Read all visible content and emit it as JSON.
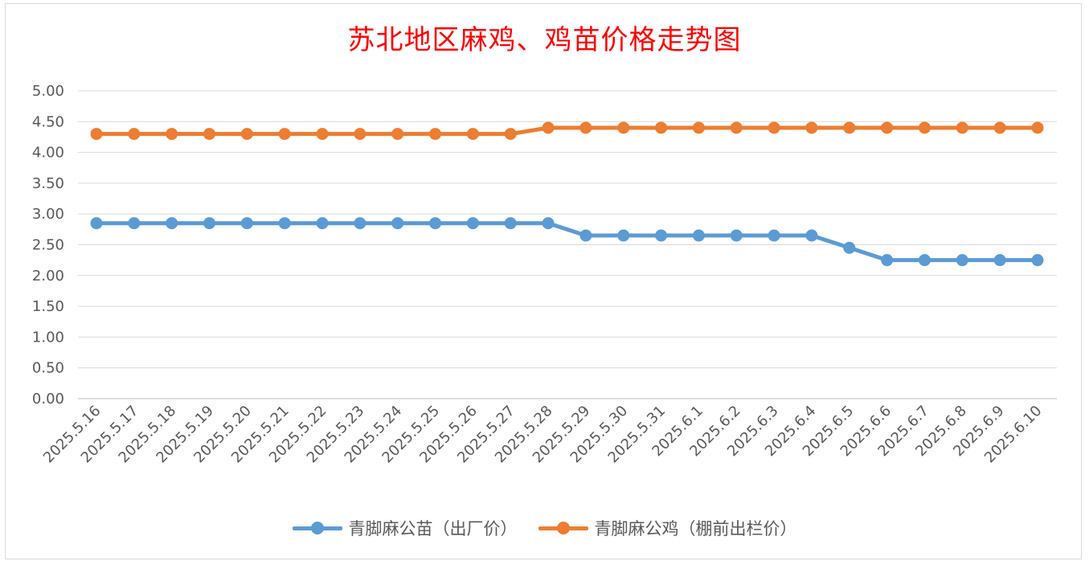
{
  "chart_data": {
    "type": "line",
    "title": "苏北地区麻鸡、鸡苗价格走势图",
    "xlabel": "",
    "ylabel": "",
    "ylim": [
      0,
      5
    ],
    "yticks": [
      "0.00",
      "0.50",
      "1.00",
      "1.50",
      "2.00",
      "2.50",
      "3.00",
      "3.50",
      "4.00",
      "4.50",
      "5.00"
    ],
    "grid": true,
    "legend_position": "bottom",
    "categories": [
      "2025.5.16",
      "2025.5.17",
      "2025.5.18",
      "2025.5.19",
      "2025.5.20",
      "2025.5.21",
      "2025.5.22",
      "2025.5.23",
      "2025.5.24",
      "2025.5.25",
      "2025.5.26",
      "2025.5.27",
      "2025.5.28",
      "2025.5.29",
      "2025.5.30",
      "2025.5.31",
      "2025.6.1",
      "2025.6.2",
      "2025.6.3",
      "2025.6.4",
      "2025.6.5",
      "2025.6.6",
      "2025.6.7",
      "2025.6.8",
      "2025.6.9",
      "2025.6.10"
    ],
    "series": [
      {
        "name": "青脚麻公苗（出厂价）",
        "color": "#5b9bd5",
        "values": [
          2.85,
          2.85,
          2.85,
          2.85,
          2.85,
          2.85,
          2.85,
          2.85,
          2.85,
          2.85,
          2.85,
          2.85,
          2.85,
          2.65,
          2.65,
          2.65,
          2.65,
          2.65,
          2.65,
          2.65,
          2.45,
          2.25,
          2.25,
          2.25,
          2.25,
          2.25
        ]
      },
      {
        "name": "青脚麻公鸡（棚前出栏价）",
        "color": "#ed7d31",
        "values": [
          4.3,
          4.3,
          4.3,
          4.3,
          4.3,
          4.3,
          4.3,
          4.3,
          4.3,
          4.3,
          4.3,
          4.3,
          4.4,
          4.4,
          4.4,
          4.4,
          4.4,
          4.4,
          4.4,
          4.4,
          4.4,
          4.4,
          4.4,
          4.4,
          4.4,
          4.4
        ]
      }
    ]
  }
}
